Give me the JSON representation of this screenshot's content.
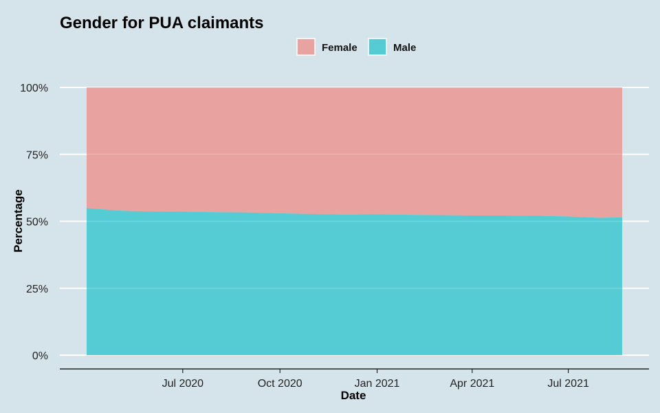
{
  "chart_data": {
    "type": "area",
    "stacked": "percent",
    "title": "Gender for PUA claimants",
    "xlabel": "Date",
    "ylabel": "Percentage",
    "x_range": [
      "2020-04-01",
      "2021-08-21"
    ],
    "ylim": [
      0,
      1
    ],
    "y_ticks": [
      {
        "value": 0,
        "label": "0%"
      },
      {
        "value": 0.25,
        "label": "25%"
      },
      {
        "value": 0.5,
        "label": "50%"
      },
      {
        "value": 0.75,
        "label": "75%"
      },
      {
        "value": 1,
        "label": "100%"
      }
    ],
    "x_ticks": [
      {
        "date": "2020-07-01",
        "label": "Jul 2020"
      },
      {
        "date": "2020-10-01",
        "label": "Oct 2020"
      },
      {
        "date": "2021-01-01",
        "label": "Jan 2021"
      },
      {
        "date": "2021-04-01",
        "label": "Apr 2021"
      },
      {
        "date": "2021-07-01",
        "label": "Jul 2021"
      }
    ],
    "legend_position": "top",
    "grid": true,
    "x": [
      "2020-04-01",
      "2020-04-15",
      "2020-05-01",
      "2020-05-15",
      "2020-06-01",
      "2020-07-01",
      "2020-08-01",
      "2020-09-01",
      "2020-10-01",
      "2020-11-01",
      "2020-12-01",
      "2021-01-01",
      "2021-02-01",
      "2021-03-01",
      "2021-04-01",
      "2021-05-01",
      "2021-06-01",
      "2021-07-01",
      "2021-08-01",
      "2021-08-21"
    ],
    "series": [
      {
        "name": "Male",
        "color": "#55ccd3",
        "values": [
          0.549,
          0.545,
          0.54,
          0.538,
          0.537,
          0.536,
          0.534,
          0.533,
          0.53,
          0.527,
          0.525,
          0.526,
          0.524,
          0.523,
          0.522,
          0.522,
          0.521,
          0.518,
          0.513,
          0.515
        ]
      },
      {
        "name": "Female",
        "color": "#e8a29f",
        "values": [
          0.451,
          0.455,
          0.46,
          0.462,
          0.463,
          0.464,
          0.466,
          0.467,
          0.47,
          0.473,
          0.475,
          0.474,
          0.476,
          0.477,
          0.478,
          0.478,
          0.479,
          0.482,
          0.487,
          0.485
        ]
      }
    ],
    "legend_order": [
      "Female",
      "Male"
    ]
  }
}
